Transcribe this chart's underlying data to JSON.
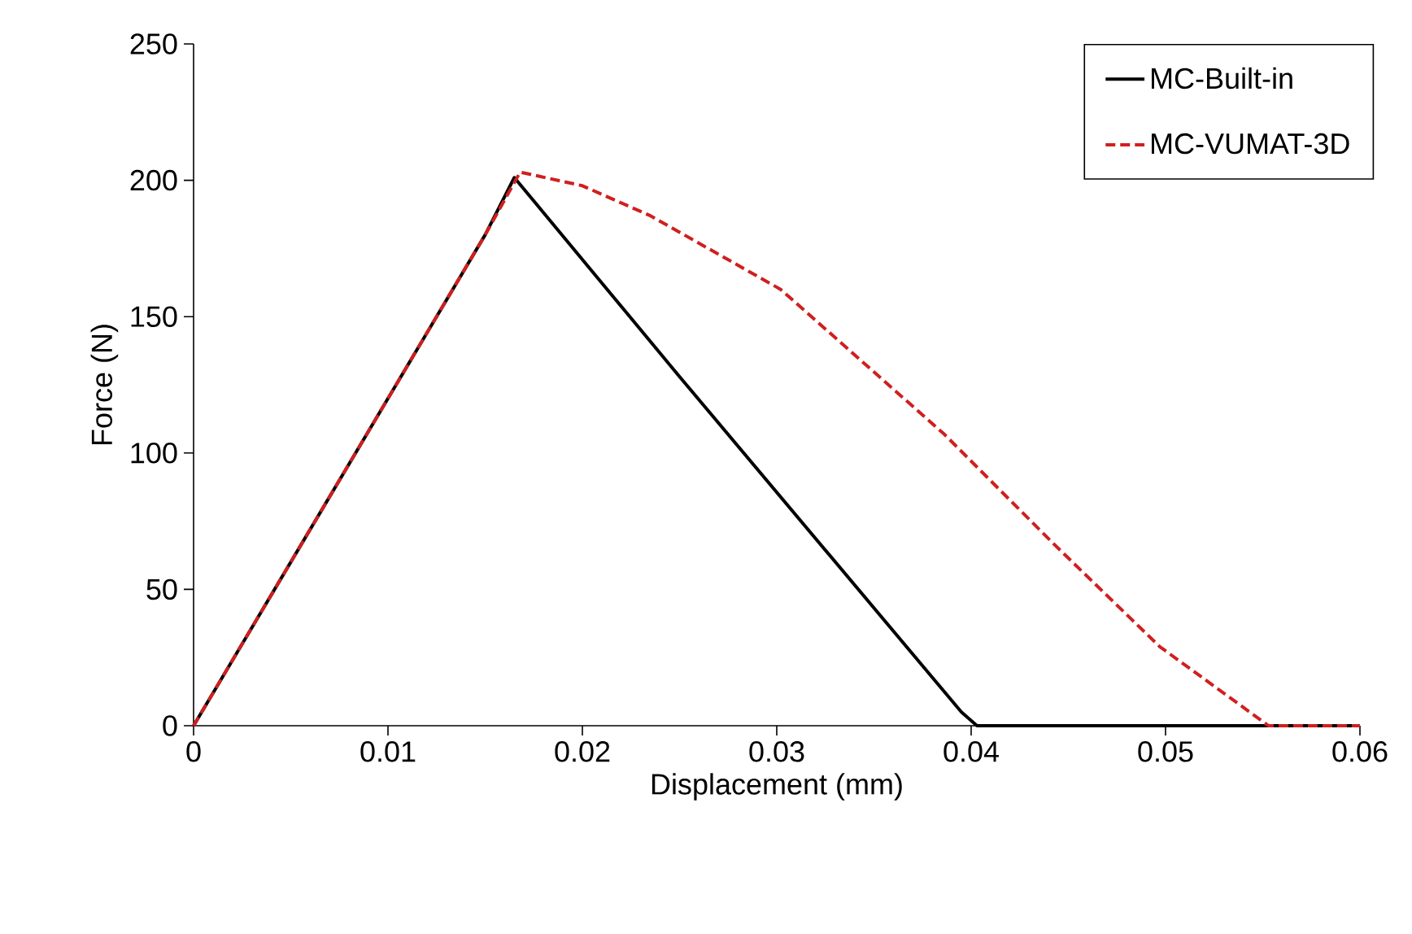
{
  "chart_data": {
    "type": "line",
    "xlabel": "Displacement (mm)",
    "ylabel": "Force (N)",
    "xlim": [
      0,
      0.06
    ],
    "ylim": [
      0,
      250
    ],
    "xticks": [
      0,
      0.01,
      0.02,
      0.03,
      0.04,
      0.05,
      0.06
    ],
    "yticks": [
      0,
      50,
      100,
      150,
      200,
      250
    ],
    "legend": "top right",
    "grid": false,
    "series": [
      {
        "name": "MC-Built-in",
        "color": "#000000",
        "line_style": "solid",
        "x": [
          0,
          0.005,
          0.01,
          0.015,
          0.0165,
          0.0179,
          0.025,
          0.0395,
          0.0403,
          0.045,
          0.05,
          0.06
        ],
        "values": [
          0,
          60,
          120,
          180,
          201,
          189,
          128,
          5,
          0,
          0,
          0,
          0
        ]
      },
      {
        "name": "MC-VUMAT-3D",
        "color": "#d01f1f",
        "line_style": "dashed",
        "x": [
          0,
          0.005,
          0.01,
          0.015,
          0.0168,
          0.02,
          0.0235,
          0.0302,
          0.0386,
          0.0442,
          0.0497,
          0.0553,
          0.06
        ],
        "values": [
          0,
          60,
          120,
          180,
          203,
          198,
          187,
          160,
          107,
          67,
          29,
          0,
          0
        ]
      }
    ]
  }
}
